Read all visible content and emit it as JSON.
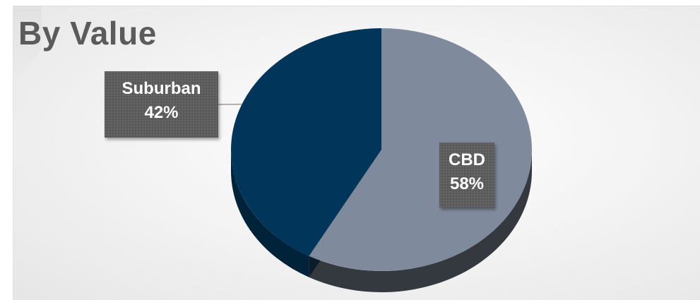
{
  "chart_data": {
    "type": "pie",
    "title": "By Value",
    "style": "3d",
    "slices": [
      {
        "label": "CBD",
        "value": 58,
        "value_label": "58%",
        "color": "#7f8a9c",
        "side_color": "#34383f"
      },
      {
        "label": "Suburban",
        "value": 42,
        "value_label": "42%",
        "color": "#01365a",
        "side_color": "#012339"
      }
    ],
    "start_angle_deg": 0,
    "direction": "clockwise",
    "legend": "none",
    "data_labels": "category-and-percent"
  }
}
